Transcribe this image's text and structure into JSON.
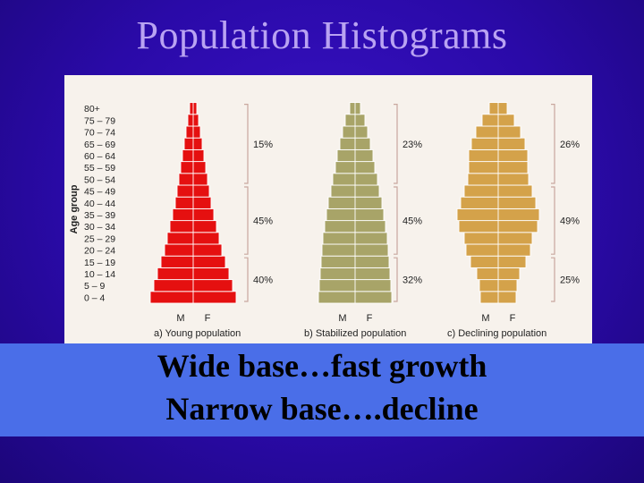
{
  "slide": {
    "title": "Population Histograms",
    "caption_line1": "Wide base…fast growth",
    "caption_line2": "Narrow base….decline"
  },
  "colors": {
    "young": "#e51010",
    "stabilized": "#a8a468",
    "declining": "#d4a24a",
    "bracket": "#c9a79e"
  },
  "chart_data": {
    "type": "bar",
    "ylabel": "Age group",
    "age_groups": [
      "0 – 4",
      "5 – 9",
      "10 – 14",
      "15 – 19",
      "20 – 24",
      "25 – 29",
      "30 – 34",
      "35 – 39",
      "40 – 44",
      "45 – 49",
      "50 – 54",
      "55 – 59",
      "60 – 64",
      "65 – 69",
      "70 – 74",
      "75 – 79",
      "80+"
    ],
    "sex_labels": [
      "M",
      "F"
    ],
    "panels": [
      {
        "label": "a) Young population",
        "color_key": "young",
        "half_widths": [
          48,
          44,
          40,
          36,
          32,
          29,
          26,
          23,
          20,
          18,
          16,
          14,
          12,
          10,
          8,
          6,
          4
        ],
        "brackets": [
          {
            "label": "40%",
            "from": 0,
            "to": 3
          },
          {
            "label": "45%",
            "from": 4,
            "to": 9
          },
          {
            "label": "15%",
            "from": 10,
            "to": 16
          }
        ]
      },
      {
        "label": "b) Stabilized population",
        "color_key": "stabilized",
        "half_widths": [
          41,
          40,
          39,
          38,
          37,
          36,
          34,
          32,
          30,
          27,
          25,
          22,
          20,
          17,
          14,
          11,
          6
        ],
        "brackets": [
          {
            "label": "32%",
            "from": 0,
            "to": 3
          },
          {
            "label": "45%",
            "from": 4,
            "to": 9
          },
          {
            "label": "23%",
            "from": 10,
            "to": 16
          }
        ]
      },
      {
        "label": "c) Declining  population",
        "color_key": "declining",
        "half_widths": [
          20,
          21,
          24,
          31,
          36,
          38,
          44,
          46,
          42,
          38,
          34,
          33,
          33,
          30,
          25,
          18,
          10
        ],
        "brackets": [
          {
            "label": "25%",
            "from": 0,
            "to": 3
          },
          {
            "label": "49%",
            "from": 4,
            "to": 9
          },
          {
            "label": "26%",
            "from": 10,
            "to": 16
          }
        ]
      }
    ]
  }
}
